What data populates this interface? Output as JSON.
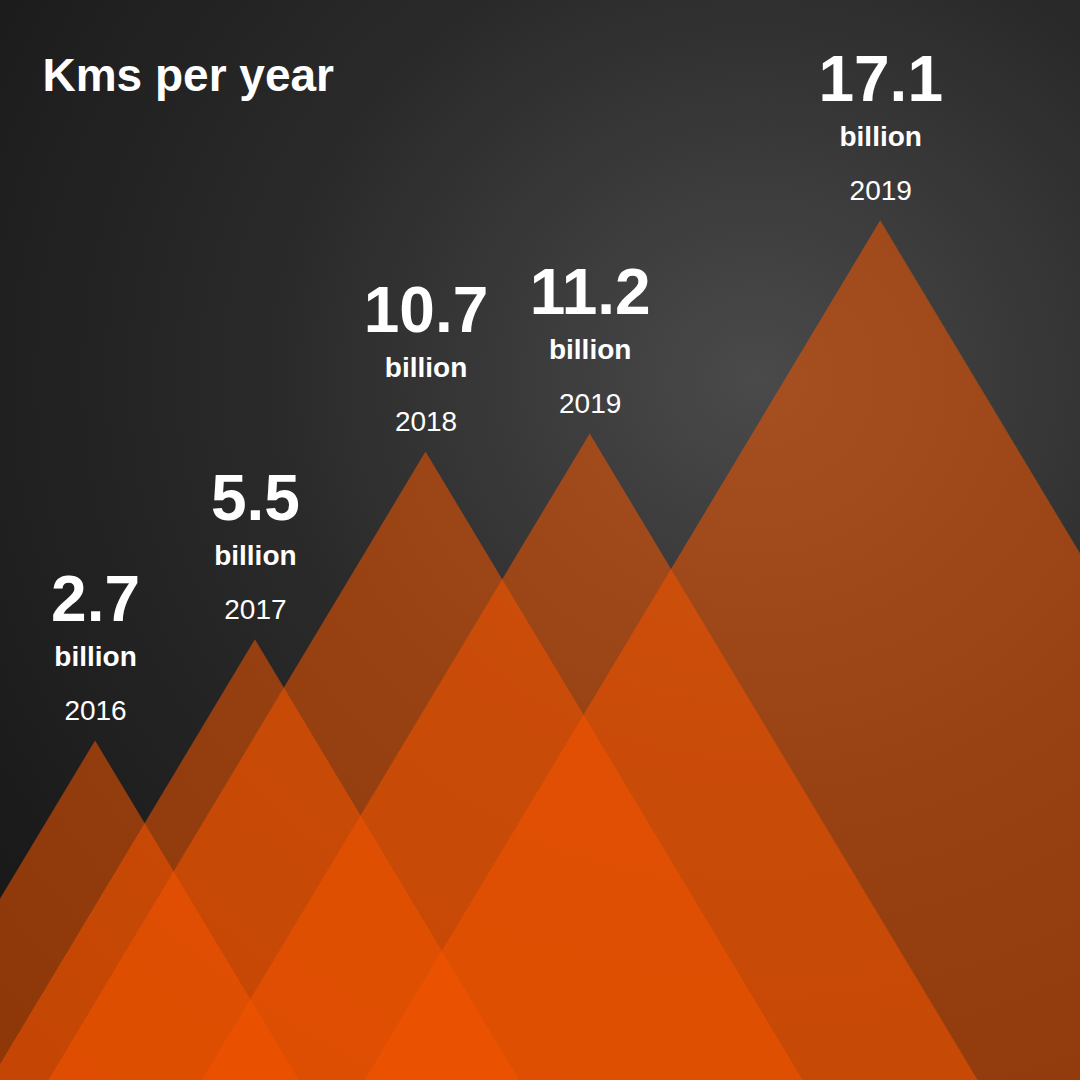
{
  "chart_data": {
    "type": "mountain",
    "title": "Kms per year",
    "categories": [
      "2016",
      "2017",
      "2018",
      "2019",
      "2019"
    ],
    "values": [
      2.7,
      5.5,
      10.7,
      11.2,
      17.1
    ],
    "unit_label": "billion",
    "color": "#f25400",
    "ylim": [
      -6.7,
      23.2
    ],
    "data_labels": true,
    "tick_labels": false
  }
}
